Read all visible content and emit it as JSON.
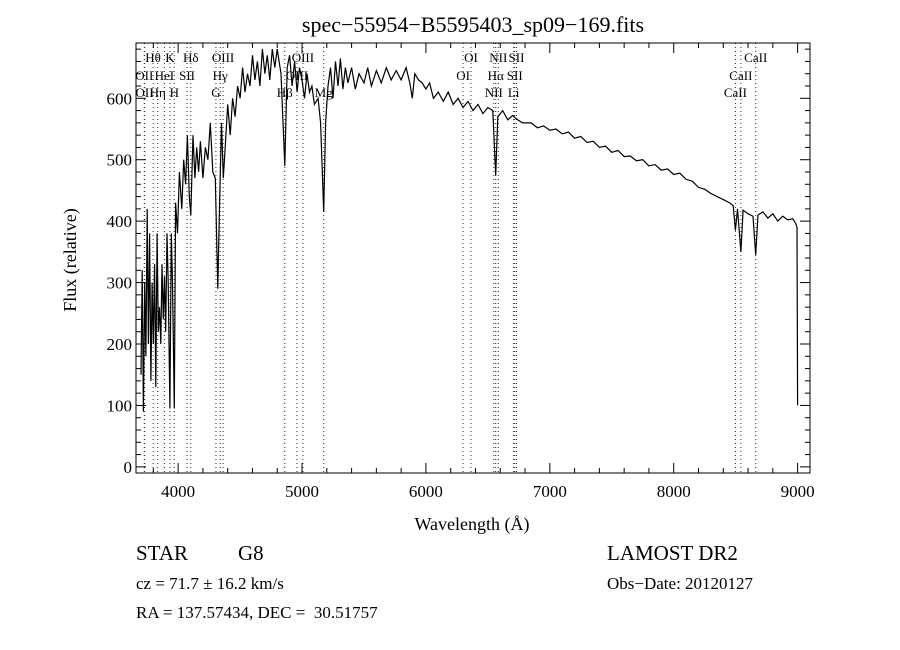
{
  "chart_data": {
    "type": "line",
    "title": "spec−55954−B5595403_sp09−169.fits",
    "xlabel": "Wavelength (Å)",
    "ylabel": "Flux (relative)",
    "xlim": [
      3660,
      9100
    ],
    "ylim": [
      -10,
      690
    ],
    "xticks": [
      4000,
      5000,
      6000,
      7000,
      8000,
      9000
    ],
    "yticks": [
      0,
      100,
      200,
      300,
      400,
      500,
      600
    ],
    "grid": false,
    "line_color": "#000000",
    "marker_color": "#8b0000",
    "series": [
      {
        "name": "spectrum",
        "points": [
          [
            3700,
            150
          ],
          [
            3710,
            320
          ],
          [
            3720,
            90
          ],
          [
            3730,
            300
          ],
          [
            3740,
            180
          ],
          [
            3750,
            420
          ],
          [
            3760,
            200
          ],
          [
            3770,
            380
          ],
          [
            3780,
            140
          ],
          [
            3790,
            300
          ],
          [
            3800,
            200
          ],
          [
            3810,
            330
          ],
          [
            3820,
            130
          ],
          [
            3830,
            380
          ],
          [
            3840,
            220
          ],
          [
            3850,
            260
          ],
          [
            3860,
            200
          ],
          [
            3870,
            330
          ],
          [
            3880,
            240
          ],
          [
            3890,
            310
          ],
          [
            3900,
            220
          ],
          [
            3910,
            380
          ],
          [
            3920,
            300
          ],
          [
            3934,
            95
          ],
          [
            3945,
            380
          ],
          [
            3955,
            300
          ],
          [
            3969,
            95
          ],
          [
            3980,
            430
          ],
          [
            3995,
            380
          ],
          [
            4010,
            480
          ],
          [
            4030,
            420
          ],
          [
            4045,
            500
          ],
          [
            4060,
            460
          ],
          [
            4075,
            540
          ],
          [
            4090,
            440
          ],
          [
            4102,
            410
          ],
          [
            4120,
            540
          ],
          [
            4135,
            470
          ],
          [
            4150,
            520
          ],
          [
            4165,
            480
          ],
          [
            4180,
            530
          ],
          [
            4200,
            470
          ],
          [
            4220,
            520
          ],
          [
            4240,
            500
          ],
          [
            4260,
            560
          ],
          [
            4280,
            480
          ],
          [
            4300,
            470
          ],
          [
            4320,
            290
          ],
          [
            4335,
            430
          ],
          [
            4350,
            560
          ],
          [
            4365,
            470
          ],
          [
            4380,
            520
          ],
          [
            4400,
            590
          ],
          [
            4420,
            540
          ],
          [
            4440,
            600
          ],
          [
            4460,
            570
          ],
          [
            4480,
            620
          ],
          [
            4500,
            600
          ],
          [
            4520,
            650
          ],
          [
            4540,
            610
          ],
          [
            4560,
            640
          ],
          [
            4580,
            620
          ],
          [
            4600,
            670
          ],
          [
            4620,
            630
          ],
          [
            4640,
            660
          ],
          [
            4660,
            620
          ],
          [
            4680,
            680
          ],
          [
            4700,
            640
          ],
          [
            4720,
            670
          ],
          [
            4740,
            630
          ],
          [
            4760,
            680
          ],
          [
            4780,
            650
          ],
          [
            4800,
            680
          ],
          [
            4830,
            640
          ],
          [
            4861,
            490
          ],
          [
            4880,
            650
          ],
          [
            4900,
            670
          ],
          [
            4920,
            620
          ],
          [
            4940,
            660
          ],
          [
            4960,
            610
          ],
          [
            4980,
            650
          ],
          [
            5000,
            630
          ],
          [
            5020,
            600
          ],
          [
            5040,
            640
          ],
          [
            5060,
            610
          ],
          [
            5080,
            620
          ],
          [
            5100,
            590
          ],
          [
            5130,
            600
          ],
          [
            5150,
            560
          ],
          [
            5175,
            415
          ],
          [
            5190,
            560
          ],
          [
            5210,
            620
          ],
          [
            5230,
            650
          ],
          [
            5250,
            600
          ],
          [
            5270,
            660
          ],
          [
            5290,
            620
          ],
          [
            5310,
            665
          ],
          [
            5330,
            615
          ],
          [
            5350,
            650
          ],
          [
            5370,
            625
          ],
          [
            5400,
            650
          ],
          [
            5430,
            615
          ],
          [
            5460,
            640
          ],
          [
            5500,
            625
          ],
          [
            5530,
            650
          ],
          [
            5560,
            620
          ],
          [
            5600,
            645
          ],
          [
            5640,
            625
          ],
          [
            5680,
            650
          ],
          [
            5720,
            630
          ],
          [
            5760,
            645
          ],
          [
            5800,
            630
          ],
          [
            5840,
            650
          ],
          [
            5870,
            625
          ],
          [
            5890,
            600
          ],
          [
            5910,
            640
          ],
          [
            5940,
            630
          ],
          [
            5970,
            625
          ],
          [
            6000,
            615
          ],
          [
            6030,
            625
          ],
          [
            6060,
            600
          ],
          [
            6100,
            610
          ],
          [
            6140,
            595
          ],
          [
            6180,
            610
          ],
          [
            6220,
            590
          ],
          [
            6260,
            600
          ],
          [
            6300,
            585
          ],
          [
            6340,
            595
          ],
          [
            6380,
            580
          ],
          [
            6420,
            590
          ],
          [
            6460,
            575
          ],
          [
            6500,
            585
          ],
          [
            6540,
            580
          ],
          [
            6563,
            475
          ],
          [
            6580,
            570
          ],
          [
            6620,
            580
          ],
          [
            6660,
            565
          ],
          [
            6700,
            572
          ],
          [
            6740,
            565
          ],
          [
            6780,
            560
          ],
          [
            6850,
            560
          ],
          [
            6900,
            552
          ],
          [
            6950,
            555
          ],
          [
            7000,
            548
          ],
          [
            7050,
            550
          ],
          [
            7100,
            542
          ],
          [
            7150,
            545
          ],
          [
            7200,
            535
          ],
          [
            7250,
            538
          ],
          [
            7300,
            528
          ],
          [
            7350,
            530
          ],
          [
            7400,
            520
          ],
          [
            7450,
            522
          ],
          [
            7500,
            512
          ],
          [
            7550,
            515
          ],
          [
            7600,
            505
          ],
          [
            7650,
            506
          ],
          [
            7700,
            498
          ],
          [
            7750,
            500
          ],
          [
            7800,
            490
          ],
          [
            7850,
            492
          ],
          [
            7900,
            483
          ],
          [
            7950,
            485
          ],
          [
            8000,
            476
          ],
          [
            8050,
            478
          ],
          [
            8100,
            468
          ],
          [
            8150,
            465
          ],
          [
            8200,
            455
          ],
          [
            8250,
            452
          ],
          [
            8300,
            445
          ],
          [
            8350,
            440
          ],
          [
            8400,
            435
          ],
          [
            8450,
            430
          ],
          [
            8480,
            425
          ],
          [
            8498,
            385
          ],
          [
            8515,
            420
          ],
          [
            8542,
            350
          ],
          [
            8560,
            418
          ],
          [
            8600,
            412
          ],
          [
            8640,
            408
          ],
          [
            8662,
            345
          ],
          [
            8680,
            410
          ],
          [
            8720,
            415
          ],
          [
            8760,
            405
          ],
          [
            8800,
            412
          ],
          [
            8840,
            400
          ],
          [
            8880,
            408
          ],
          [
            8920,
            402
          ],
          [
            8960,
            404
          ],
          [
            8985,
            396
          ],
          [
            8995,
            390
          ],
          [
            9000,
            100
          ]
        ]
      }
    ],
    "line_markers": [
      {
        "label": "Hθ",
        "wavelength": 3798,
        "row": 1
      },
      {
        "label": "K",
        "wavelength": 3934,
        "row": 1
      },
      {
        "label": "Hδ",
        "wavelength": 4102,
        "row": 1
      },
      {
        "label": "OIII",
        "wavelength": 4363,
        "row": 1
      },
      {
        "label": "OIII",
        "wavelength": 5007,
        "row": 1
      },
      {
        "label": "OI",
        "wavelength": 6364,
        "row": 1
      },
      {
        "label": "NII",
        "wavelength": 6584,
        "row": 1
      },
      {
        "label": "SII",
        "wavelength": 6731,
        "row": 1
      },
      {
        "label": "CaII",
        "wavelength": 8662,
        "row": 1
      },
      {
        "label": "OII",
        "wavelength": 3727,
        "row": 2
      },
      {
        "label": "HeI",
        "wavelength": 3889,
        "row": 2
      },
      {
        "label": "SII",
        "wavelength": 4072,
        "row": 2
      },
      {
        "label": "Hγ",
        "wavelength": 4340,
        "row": 2
      },
      {
        "label": "OIII",
        "wavelength": 4959,
        "row": 2
      },
      {
        "label": "OI",
        "wavelength": 6300,
        "row": 2
      },
      {
        "label": "Hα",
        "wavelength": 6563,
        "row": 2
      },
      {
        "label": "SII",
        "wavelength": 6717,
        "row": 2
      },
      {
        "label": "CaII",
        "wavelength": 8542,
        "row": 2
      },
      {
        "label": "OII",
        "wavelength": 3729,
        "row": 3
      },
      {
        "label": "Hη",
        "wavelength": 3835,
        "row": 3
      },
      {
        "label": "H",
        "wavelength": 3969,
        "row": 3
      },
      {
        "label": "G",
        "wavelength": 4305,
        "row": 3
      },
      {
        "label": "Hβ",
        "wavelength": 4861,
        "row": 3
      },
      {
        "label": "Mg",
        "wavelength": 5175,
        "row": 3
      },
      {
        "label": "NII",
        "wavelength": 6548,
        "row": 3
      },
      {
        "label": "Li",
        "wavelength": 6708,
        "row": 3
      },
      {
        "label": "CaII",
        "wavelength": 8498,
        "row": 3
      }
    ]
  },
  "info": {
    "object_class": "STAR",
    "subclass": "G8",
    "survey": "LAMOST DR2",
    "redshift": "cz = 71.7 ± 16.2 km/s",
    "obs_date": "Obs−Date: 20120127",
    "coords": "RA = 137.57434, DEC =  30.51757"
  }
}
